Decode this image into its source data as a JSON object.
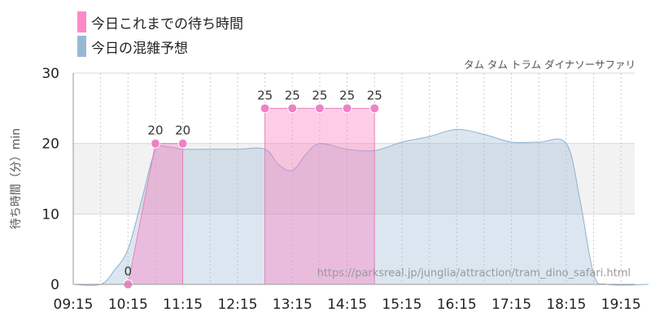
{
  "chart_data": {
    "type": "area",
    "subtitle": "タム タム トラム ダイナソーサファリ",
    "ylabel": "待ち時間（分）min",
    "ylim": [
      0,
      30
    ],
    "yticks": [
      "0",
      "10",
      "20",
      "30"
    ],
    "xticks": [
      "09:15",
      "10:15",
      "11:15",
      "12:15",
      "13:15",
      "14:15",
      "15:15",
      "16:15",
      "17:15",
      "18:15",
      "19:15"
    ],
    "band_range": [
      10,
      20
    ],
    "grid": true,
    "legend_position": "top-left",
    "series": [
      {
        "name": "今日これまでの待ち時間",
        "color": "#ff88c8",
        "points": [
          {
            "x": "10:15",
            "y": 0,
            "label": "0"
          },
          {
            "x": "10:45",
            "y": 20,
            "label": "20"
          },
          {
            "x": "11:15",
            "y": 20,
            "label": "20"
          },
          {
            "x": "12:45",
            "y": 25,
            "label": "25"
          },
          {
            "x": "13:15",
            "y": 25,
            "label": "25"
          },
          {
            "x": "13:45",
            "y": 25,
            "label": "25"
          },
          {
            "x": "14:15",
            "y": 25,
            "label": "25"
          },
          {
            "x": "14:45",
            "y": 25,
            "label": "25"
          }
        ]
      },
      {
        "name": "今日の混雑予想",
        "color": "#9ab8d4",
        "points": [
          {
            "x": "09:15",
            "y": 0
          },
          {
            "x": "09:45",
            "y": 0
          },
          {
            "x": "10:00",
            "y": 2
          },
          {
            "x": "10:15",
            "y": 5
          },
          {
            "x": "10:30",
            "y": 12
          },
          {
            "x": "10:45",
            "y": 19
          },
          {
            "x": "11:00",
            "y": 19.5
          },
          {
            "x": "11:15",
            "y": 19.2
          },
          {
            "x": "11:45",
            "y": 19.2
          },
          {
            "x": "12:15",
            "y": 19.2
          },
          {
            "x": "12:45",
            "y": 19.2
          },
          {
            "x": "13:00",
            "y": 17
          },
          {
            "x": "13:15",
            "y": 16.2
          },
          {
            "x": "13:30",
            "y": 18.5
          },
          {
            "x": "13:45",
            "y": 20
          },
          {
            "x": "14:15",
            "y": 19.2
          },
          {
            "x": "14:45",
            "y": 19
          },
          {
            "x": "15:15",
            "y": 20.2
          },
          {
            "x": "15:45",
            "y": 21
          },
          {
            "x": "16:15",
            "y": 22
          },
          {
            "x": "16:45",
            "y": 21.3
          },
          {
            "x": "17:15",
            "y": 20.2
          },
          {
            "x": "17:45",
            "y": 20.2
          },
          {
            "x": "18:15",
            "y": 20
          },
          {
            "x": "18:30",
            "y": 12
          },
          {
            "x": "18:45",
            "y": 1.5
          },
          {
            "x": "19:00",
            "y": 0
          },
          {
            "x": "19:45",
            "y": 0
          }
        ]
      }
    ],
    "watermark": "https://parksreal.jp/junglia/attraction/tram_dino_safari.html"
  }
}
